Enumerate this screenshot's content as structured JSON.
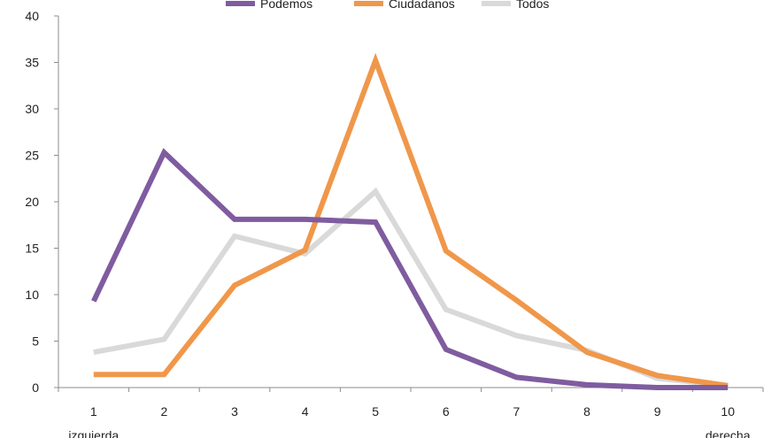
{
  "chart_data": {
    "type": "line",
    "categories": [
      "1",
      "2",
      "3",
      "4",
      "5",
      "6",
      "7",
      "8",
      "9",
      "10"
    ],
    "category_sublabels": [
      "izquierda",
      "",
      "",
      "",
      "",
      "",
      "",
      "",
      "",
      "derecha"
    ],
    "ylim": [
      0,
      40
    ],
    "yticks": [
      0,
      5,
      10,
      15,
      20,
      25,
      30,
      35,
      40
    ],
    "grid": false,
    "legend_position": "top",
    "series": [
      {
        "name": "Podemos",
        "color": "#7f5c9f",
        "values": [
          9.3,
          25.3,
          18.1,
          18.1,
          17.8,
          4.1,
          1.1,
          0.3,
          0.0,
          0.0
        ]
      },
      {
        "name": "Ciudadanos",
        "color": "#f0974a",
        "values": [
          1.4,
          1.4,
          11.0,
          14.8,
          35.2,
          14.7,
          9.4,
          3.8,
          1.3,
          0.2
        ]
      },
      {
        "name": "Todos",
        "color": "#d9d9d9",
        "values": [
          3.8,
          5.2,
          16.3,
          14.4,
          21.1,
          8.4,
          5.6,
          4.0,
          1.0,
          0.2
        ]
      }
    ]
  }
}
